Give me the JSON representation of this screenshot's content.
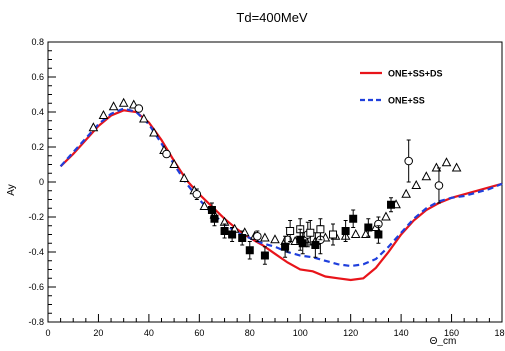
{
  "chart_data": {
    "type": "scatter",
    "title": "Td=400MeV",
    "xlabel": "Θ_cm",
    "ylabel": "Ay",
    "xlim": [
      0,
      180
    ],
    "ylim": [
      -0.8,
      0.8
    ],
    "xticks": [
      0,
      20,
      40,
      60,
      80,
      100,
      120,
      140,
      160,
      180
    ],
    "yticks": [
      -0.8,
      -0.6,
      -0.4,
      -0.2,
      0,
      0.2,
      0.4,
      0.6,
      0.8
    ],
    "legend_position": "top-right",
    "series": [
      {
        "name": "ONE+SS+DS",
        "kind": "line",
        "style": "solid",
        "color": "#e8141a",
        "x": [
          5,
          10,
          15,
          20,
          25,
          30,
          35,
          40,
          45,
          50,
          55,
          60,
          65,
          70,
          75,
          80,
          85,
          90,
          95,
          100,
          105,
          110,
          115,
          120,
          125,
          130,
          135,
          140,
          145,
          150,
          155,
          160,
          165,
          170,
          175,
          180
        ],
        "y": [
          0.09,
          0.16,
          0.24,
          0.32,
          0.38,
          0.41,
          0.4,
          0.34,
          0.24,
          0.12,
          0.01,
          -0.07,
          -0.14,
          -0.21,
          -0.27,
          -0.32,
          -0.36,
          -0.41,
          -0.46,
          -0.5,
          -0.51,
          -0.54,
          -0.55,
          -0.56,
          -0.55,
          -0.49,
          -0.4,
          -0.3,
          -0.22,
          -0.16,
          -0.12,
          -0.09,
          -0.07,
          -0.05,
          -0.03,
          -0.01
        ]
      },
      {
        "name": "ONE+SS",
        "kind": "line",
        "style": "dashed",
        "color": "#1f3fdc",
        "x": [
          5,
          10,
          15,
          20,
          25,
          30,
          35,
          40,
          45,
          50,
          55,
          60,
          65,
          70,
          75,
          80,
          85,
          90,
          95,
          100,
          105,
          110,
          115,
          120,
          125,
          130,
          135,
          140,
          145,
          150,
          155,
          160,
          165,
          170,
          175,
          180
        ],
        "y": [
          0.09,
          0.17,
          0.25,
          0.33,
          0.39,
          0.42,
          0.4,
          0.33,
          0.22,
          0.1,
          -0.01,
          -0.1,
          -0.18,
          -0.24,
          -0.29,
          -0.32,
          -0.35,
          -0.37,
          -0.4,
          -0.42,
          -0.43,
          -0.45,
          -0.47,
          -0.48,
          -0.47,
          -0.44,
          -0.37,
          -0.29,
          -0.21,
          -0.15,
          -0.11,
          -0.09,
          -0.08,
          -0.06,
          -0.04,
          -0.01
        ]
      },
      {
        "kind": "points",
        "marker": "triangle-open",
        "x": [
          18,
          22,
          26,
          30,
          34,
          38,
          42,
          46,
          50,
          54,
          58,
          62,
          66,
          70,
          74,
          78,
          82,
          86,
          90,
          94,
          98,
          102,
          106,
          110,
          114,
          118,
          122,
          126,
          130,
          134,
          138,
          142,
          146,
          150,
          154,
          158,
          162
        ],
        "y": [
          0.31,
          0.38,
          0.43,
          0.45,
          0.44,
          0.36,
          0.28,
          0.18,
          0.1,
          0.02,
          -0.05,
          -0.14,
          -0.19,
          -0.23,
          -0.27,
          -0.29,
          -0.31,
          -0.32,
          -0.33,
          -0.34,
          -0.34,
          -0.33,
          -0.34,
          -0.32,
          -0.31,
          -0.31,
          -0.3,
          -0.3,
          -0.26,
          -0.2,
          -0.13,
          -0.07,
          -0.02,
          0.03,
          0.08,
          0.11,
          0.08
        ]
      },
      {
        "kind": "points",
        "marker": "circle-open",
        "x": [
          36,
          47,
          59,
          83,
          95,
          103,
          108,
          131,
          143,
          155
        ],
        "y": [
          0.42,
          0.16,
          -0.07,
          -0.31,
          -0.33,
          -0.3,
          -0.33,
          -0.24,
          0.12,
          -0.02
        ],
        "yerr": [
          0.02,
          0.02,
          0.03,
          0.03,
          0.07,
          0.07,
          0.08,
          0.04,
          0.12,
          0.1
        ]
      },
      {
        "kind": "points",
        "marker": "square-open",
        "x": [
          96,
          100,
          104,
          108,
          113
        ],
        "y": [
          -0.28,
          -0.27,
          -0.29,
          -0.27,
          -0.3
        ],
        "yerr": [
          0.06,
          0.06,
          0.07,
          0.06,
          0.06
        ]
      },
      {
        "kind": "points",
        "marker": "square-filled",
        "x": [
          65,
          66,
          70,
          73,
          77,
          80,
          86,
          94,
          100,
          101,
          106,
          118,
          121,
          127,
          131,
          136
        ],
        "y": [
          -0.16,
          -0.21,
          -0.28,
          -0.3,
          -0.32,
          -0.39,
          -0.42,
          -0.37,
          -0.33,
          -0.35,
          -0.36,
          -0.28,
          -0.21,
          -0.26,
          -0.3,
          -0.13
        ],
        "yerr": [
          0.04,
          0.04,
          0.04,
          0.04,
          0.04,
          0.05,
          0.05,
          0.06,
          0.06,
          0.06,
          0.07,
          0.06,
          0.05,
          0.05,
          0.05,
          0.04
        ]
      }
    ]
  }
}
